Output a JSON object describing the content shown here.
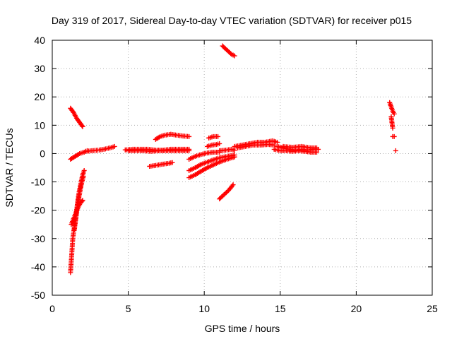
{
  "chart_data": {
    "type": "scatter",
    "title": "Day 319 of 2017, Sidereal Day-to-day VTEC variation (SDTVAR) for receiver p015",
    "xlabel": "GPS time / hours",
    "ylabel": "SDTVAR / TECUs",
    "xlim": [
      0,
      25
    ],
    "ylim": [
      -50,
      40
    ],
    "xticks": [
      "0",
      "5",
      "10",
      "15",
      "20",
      "25"
    ],
    "yticks": [
      "-50",
      "-40",
      "-30",
      "-20",
      "-10",
      "0",
      "10",
      "20",
      "30",
      "40"
    ],
    "grid": true,
    "marker": "plus",
    "color": "#ff0000",
    "series": [
      {
        "segments": [
          [
            [
              1.2,
              16
            ],
            [
              1.4,
              14.5
            ],
            [
              1.6,
              12.5
            ],
            [
              1.8,
              11
            ],
            [
              2.0,
              9.5
            ]
          ],
          [
            [
              1.25,
              -25
            ],
            [
              1.4,
              -23
            ],
            [
              1.55,
              -21
            ],
            [
              1.7,
              -19
            ],
            [
              1.85,
              -17.5
            ],
            [
              2.0,
              -16.5
            ]
          ],
          [
            [
              1.2,
              -42
            ],
            [
              1.25,
              -38
            ],
            [
              1.3,
              -34
            ],
            [
              1.35,
              -30
            ],
            [
              1.45,
              -26
            ],
            [
              1.55,
              -22
            ],
            [
              1.65,
              -18
            ],
            [
              1.75,
              -14
            ],
            [
              1.9,
              -10
            ],
            [
              2.0,
              -7.5
            ],
            [
              2.1,
              -6
            ]
          ],
          [
            [
              1.45,
              -27
            ],
            [
              1.55,
              -23
            ],
            [
              1.65,
              -19
            ],
            [
              1.75,
              -15.5
            ],
            [
              1.85,
              -12.5
            ],
            [
              1.95,
              -10
            ],
            [
              2.05,
              -8
            ]
          ],
          [
            [
              1.2,
              -2
            ],
            [
              1.5,
              -1
            ],
            [
              1.8,
              0
            ],
            [
              2.1,
              0.5
            ],
            [
              2.3,
              1
            ]
          ],
          [
            [
              2.2,
              0.8
            ],
            [
              2.6,
              1
            ],
            [
              3.0,
              1.2
            ],
            [
              3.4,
              1.5
            ],
            [
              3.8,
              2
            ],
            [
              4.1,
              2.5
            ]
          ],
          [
            [
              4.8,
              1.3
            ],
            [
              5.3,
              1.5
            ],
            [
              5.8,
              1.5
            ],
            [
              6.3,
              1.5
            ],
            [
              6.8,
              1.2
            ],
            [
              7.3,
              1.2
            ],
            [
              7.8,
              1.5
            ],
            [
              8.3,
              1.5
            ],
            [
              9.0,
              1.5
            ]
          ],
          [
            [
              5.0,
              1
            ],
            [
              5.5,
              1
            ],
            [
              6.0,
              1
            ],
            [
              6.5,
              0.8
            ],
            [
              7.0,
              1
            ],
            [
              7.5,
              1
            ],
            [
              8.0,
              1
            ],
            [
              8.5,
              1
            ],
            [
              9.0,
              1
            ]
          ],
          [
            [
              6.4,
              -4.5
            ],
            [
              6.8,
              -4.2
            ],
            [
              7.2,
              -3.8
            ],
            [
              7.6,
              -3.5
            ],
            [
              7.9,
              -3.2
            ]
          ],
          [
            [
              6.8,
              5
            ],
            [
              7.1,
              6
            ],
            [
              7.4,
              6.5
            ],
            [
              7.8,
              6.8
            ],
            [
              8.2,
              6.5
            ],
            [
              8.6,
              6.2
            ],
            [
              9.0,
              6
            ]
          ],
          [
            [
              9.0,
              -8.5
            ],
            [
              9.4,
              -7.5
            ],
            [
              9.8,
              -6.2
            ],
            [
              10.2,
              -5
            ],
            [
              10.6,
              -4
            ],
            [
              11.0,
              -3
            ],
            [
              11.5,
              -2
            ],
            [
              12.0,
              -1.2
            ]
          ],
          [
            [
              9.0,
              -6
            ],
            [
              9.4,
              -5
            ],
            [
              9.8,
              -3.8
            ],
            [
              10.2,
              -3
            ],
            [
              10.6,
              -2.2
            ],
            [
              11.0,
              -1.5
            ],
            [
              11.5,
              -1
            ],
            [
              12.0,
              -0.5
            ]
          ],
          [
            [
              9.0,
              -2
            ],
            [
              9.4,
              -1
            ],
            [
              9.8,
              -0.3
            ],
            [
              10.2,
              0.2
            ],
            [
              10.6,
              0.5
            ],
            [
              11.0,
              0.5
            ]
          ],
          [
            [
              10.3,
              5.5
            ],
            [
              10.6,
              6
            ],
            [
              10.9,
              6
            ]
          ],
          [
            [
              10.2,
              2.5
            ],
            [
              10.5,
              3
            ],
            [
              10.8,
              3.2
            ],
            [
              11.0,
              3.5
            ]
          ],
          [
            [
              11.0,
              1
            ],
            [
              11.4,
              1.2
            ],
            [
              11.8,
              1.5
            ],
            [
              12.0,
              1.2
            ]
          ],
          [
            [
              11.0,
              -16
            ],
            [
              11.3,
              -14.5
            ],
            [
              11.6,
              -13
            ],
            [
              11.9,
              -11
            ]
          ],
          [
            [
              11.2,
              38
            ],
            [
              11.4,
              37
            ],
            [
              11.6,
              36
            ],
            [
              11.8,
              35
            ],
            [
              12.0,
              34.5
            ]
          ],
          [
            [
              12.0,
              2.5
            ],
            [
              12.5,
              3
            ],
            [
              13.0,
              3.5
            ],
            [
              13.5,
              4
            ],
            [
              14.0,
              4
            ],
            [
              14.5,
              4.5
            ],
            [
              14.8,
              4
            ]
          ],
          [
            [
              12.2,
              2
            ],
            [
              12.7,
              2.5
            ],
            [
              13.2,
              3
            ],
            [
              13.7,
              3
            ],
            [
              14.2,
              3.2
            ],
            [
              14.6,
              3
            ]
          ],
          [
            [
              14.8,
              2.5
            ],
            [
              15.2,
              2
            ],
            [
              15.6,
              1.5
            ],
            [
              16.0,
              1.2
            ],
            [
              16.4,
              1.5
            ],
            [
              16.8,
              1.2
            ],
            [
              17.2,
              1.5
            ],
            [
              17.5,
              1.5
            ]
          ],
          [
            [
              14.6,
              1.5
            ],
            [
              15.0,
              1
            ],
            [
              15.4,
              1
            ],
            [
              15.8,
              0.8
            ],
            [
              16.2,
              1
            ],
            [
              16.6,
              0.8
            ],
            [
              17.0,
              0.5
            ],
            [
              17.4,
              0.5
            ]
          ],
          [
            [
              15.2,
              2.5
            ],
            [
              15.8,
              2.2
            ],
            [
              16.4,
              2.5
            ],
            [
              17.0,
              2
            ],
            [
              17.4,
              2
            ]
          ],
          [
            [
              22.2,
              18
            ],
            [
              22.3,
              16.5
            ],
            [
              22.4,
              15
            ],
            [
              22.5,
              14
            ]
          ],
          [
            [
              22.3,
              13
            ],
            [
              22.35,
              11
            ],
            [
              22.4,
              9
            ]
          ],
          [
            [
              22.4,
              6
            ],
            [
              22.5,
              6
            ]
          ],
          [
            [
              22.6,
              1
            ]
          ]
        ]
      }
    ]
  }
}
